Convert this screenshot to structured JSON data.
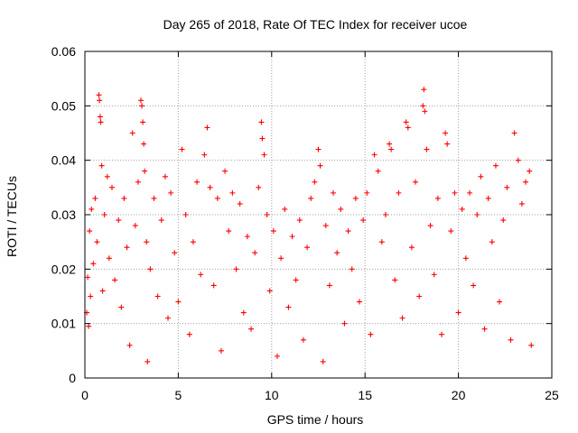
{
  "chart_data": {
    "type": "scatter",
    "title": "Day 265 of 2018, Rate Of TEC Index for receiver ucoe",
    "xlabel": "GPS time / hours",
    "ylabel": "ROTI / TECUs",
    "xlim": [
      0,
      25
    ],
    "ylim": [
      0,
      0.06
    ],
    "grid": true,
    "x_ticks": [
      0,
      5,
      10,
      15,
      20,
      25
    ],
    "x_tick_labels": [
      "0",
      "5",
      "10",
      "15",
      "20",
      "25"
    ],
    "y_ticks": [
      0,
      0.01,
      0.02,
      0.03,
      0.04,
      0.05,
      0.06
    ],
    "y_tick_labels": [
      "0",
      "0.01",
      "0.02",
      "0.03",
      "0.04",
      "0.05",
      "0.06"
    ],
    "marker": "plus",
    "color": "#ff0000",
    "series": [
      {
        "name": "ROTI",
        "points": [
          [
            0.1,
            0.012
          ],
          [
            0.15,
            0.0185
          ],
          [
            0.2,
            0.0095
          ],
          [
            0.25,
            0.027
          ],
          [
            0.3,
            0.015
          ],
          [
            0.35,
            0.031
          ],
          [
            0.45,
            0.021
          ],
          [
            0.55,
            0.033
          ],
          [
            0.65,
            0.025
          ],
          [
            0.75,
            0.052
          ],
          [
            0.78,
            0.051
          ],
          [
            0.82,
            0.048
          ],
          [
            0.85,
            0.047
          ],
          [
            0.9,
            0.039
          ],
          [
            0.95,
            0.016
          ],
          [
            1.05,
            0.03
          ],
          [
            1.2,
            0.037
          ],
          [
            1.3,
            0.022
          ],
          [
            1.45,
            0.035
          ],
          [
            1.6,
            0.018
          ],
          [
            1.8,
            0.029
          ],
          [
            1.95,
            0.013
          ],
          [
            2.1,
            0.033
          ],
          [
            2.25,
            0.024
          ],
          [
            2.4,
            0.006
          ],
          [
            2.55,
            0.045
          ],
          [
            2.7,
            0.028
          ],
          [
            2.85,
            0.036
          ],
          [
            3.0,
            0.051
          ],
          [
            3.05,
            0.05
          ],
          [
            3.1,
            0.047
          ],
          [
            3.15,
            0.043
          ],
          [
            3.2,
            0.038
          ],
          [
            3.3,
            0.025
          ],
          [
            3.35,
            0.003
          ],
          [
            3.5,
            0.02
          ],
          [
            3.7,
            0.033
          ],
          [
            3.9,
            0.015
          ],
          [
            4.1,
            0.029
          ],
          [
            4.3,
            0.037
          ],
          [
            4.45,
            0.011
          ],
          [
            4.6,
            0.034
          ],
          [
            4.8,
            0.023
          ],
          [
            5.0,
            0.014
          ],
          [
            5.2,
            0.042
          ],
          [
            5.4,
            0.03
          ],
          [
            5.6,
            0.008
          ],
          [
            5.8,
            0.025
          ],
          [
            6.0,
            0.036
          ],
          [
            6.2,
            0.019
          ],
          [
            6.4,
            0.041
          ],
          [
            6.55,
            0.046
          ],
          [
            6.7,
            0.035
          ],
          [
            6.9,
            0.017
          ],
          [
            7.1,
            0.033
          ],
          [
            7.3,
            0.005
          ],
          [
            7.5,
            0.038
          ],
          [
            7.7,
            0.027
          ],
          [
            7.9,
            0.034
          ],
          [
            8.1,
            0.02
          ],
          [
            8.3,
            0.032
          ],
          [
            8.5,
            0.012
          ],
          [
            8.7,
            0.026
          ],
          [
            8.9,
            0.009
          ],
          [
            9.1,
            0.023
          ],
          [
            9.3,
            0.035
          ],
          [
            9.45,
            0.047
          ],
          [
            9.5,
            0.044
          ],
          [
            9.6,
            0.041
          ],
          [
            9.75,
            0.03
          ],
          [
            9.9,
            0.016
          ],
          [
            10.1,
            0.027
          ],
          [
            10.3,
            0.004
          ],
          [
            10.5,
            0.022
          ],
          [
            10.7,
            0.031
          ],
          [
            10.9,
            0.013
          ],
          [
            11.1,
            0.026
          ],
          [
            11.3,
            0.018
          ],
          [
            11.5,
            0.029
          ],
          [
            11.7,
            0.007
          ],
          [
            11.9,
            0.024
          ],
          [
            12.1,
            0.033
          ],
          [
            12.3,
            0.036
          ],
          [
            12.5,
            0.042
          ],
          [
            12.6,
            0.039
          ],
          [
            12.75,
            0.003
          ],
          [
            12.9,
            0.028
          ],
          [
            13.1,
            0.017
          ],
          [
            13.3,
            0.034
          ],
          [
            13.5,
            0.023
          ],
          [
            13.7,
            0.031
          ],
          [
            13.9,
            0.01
          ],
          [
            14.1,
            0.027
          ],
          [
            14.3,
            0.02
          ],
          [
            14.5,
            0.033
          ],
          [
            14.7,
            0.014
          ],
          [
            14.9,
            0.029
          ],
          [
            15.1,
            0.034
          ],
          [
            15.3,
            0.008
          ],
          [
            15.5,
            0.041
          ],
          [
            15.7,
            0.038
          ],
          [
            15.9,
            0.025
          ],
          [
            16.1,
            0.03
          ],
          [
            16.3,
            0.043
          ],
          [
            16.4,
            0.042
          ],
          [
            16.6,
            0.018
          ],
          [
            16.8,
            0.034
          ],
          [
            17.0,
            0.011
          ],
          [
            17.2,
            0.047
          ],
          [
            17.3,
            0.046
          ],
          [
            17.5,
            0.024
          ],
          [
            17.7,
            0.036
          ],
          [
            17.9,
            0.015
          ],
          [
            18.1,
            0.05
          ],
          [
            18.15,
            0.053
          ],
          [
            18.2,
            0.049
          ],
          [
            18.3,
            0.042
          ],
          [
            18.5,
            0.028
          ],
          [
            18.7,
            0.019
          ],
          [
            18.9,
            0.033
          ],
          [
            19.1,
            0.008
          ],
          [
            19.3,
            0.045
          ],
          [
            19.4,
            0.043
          ],
          [
            19.6,
            0.027
          ],
          [
            19.8,
            0.034
          ],
          [
            20.0,
            0.012
          ],
          [
            20.2,
            0.031
          ],
          [
            20.4,
            0.022
          ],
          [
            20.6,
            0.034
          ],
          [
            20.8,
            0.017
          ],
          [
            21.0,
            0.03
          ],
          [
            21.2,
            0.037
          ],
          [
            21.4,
            0.009
          ],
          [
            21.6,
            0.033
          ],
          [
            21.8,
            0.025
          ],
          [
            22.0,
            0.039
          ],
          [
            22.2,
            0.014
          ],
          [
            22.4,
            0.029
          ],
          [
            22.6,
            0.035
          ],
          [
            22.8,
            0.007
          ],
          [
            23.0,
            0.045
          ],
          [
            23.2,
            0.04
          ],
          [
            23.4,
            0.032
          ],
          [
            23.6,
            0.036
          ],
          [
            23.8,
            0.038
          ],
          [
            23.9,
            0.006
          ]
        ]
      }
    ]
  }
}
